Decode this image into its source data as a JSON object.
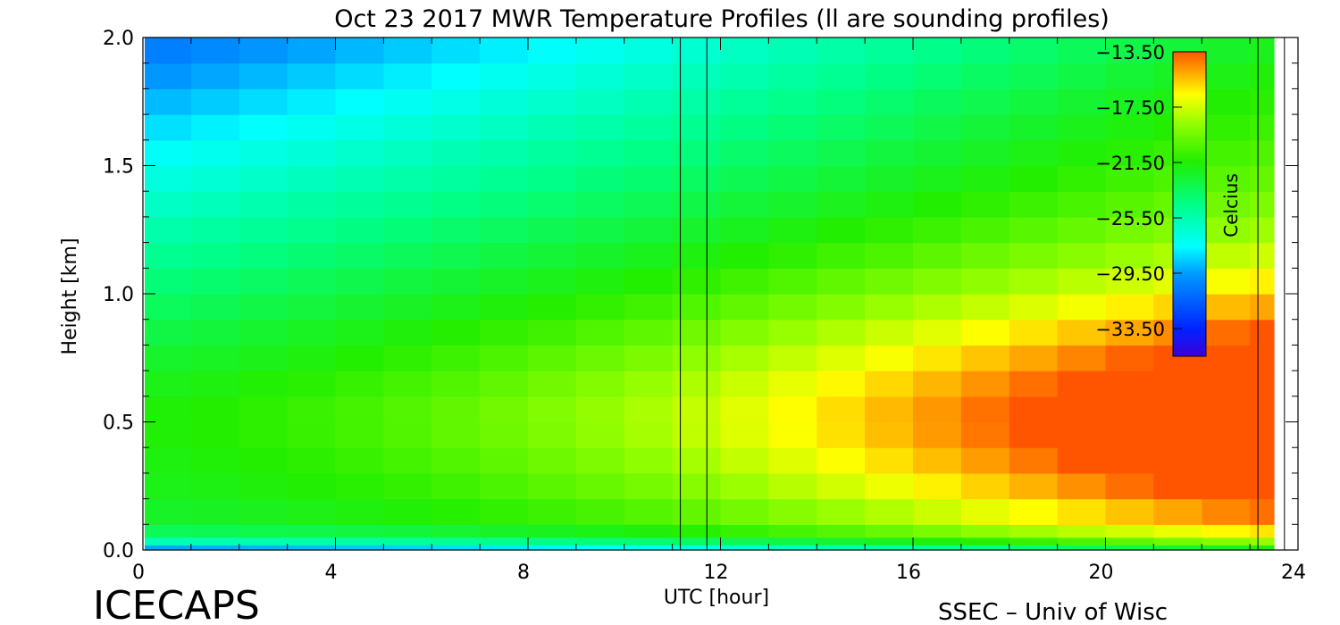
{
  "chart_data": {
    "type": "heatmap",
    "title": "Oct 23 2017 MWR Temperature Profiles (ll are sounding profiles)",
    "xlabel": "UTC [hour]",
    "ylabel": "Height [km]",
    "xlim": [
      0,
      24
    ],
    "ylim": [
      0,
      2.0
    ],
    "x_ticks": [
      "0",
      "4",
      "8",
      "12",
      "16",
      "20",
      "24"
    ],
    "y_ticks": [
      "0.0",
      "0.5",
      "1.0",
      "1.5",
      "2.0"
    ],
    "colorbar": {
      "label": "Celcius",
      "range": [
        -35.5,
        -13.5
      ],
      "ticks": [
        "-13.50",
        "-17.50",
        "-21.50",
        "-25.50",
        "-29.50",
        "-33.50"
      ]
    },
    "heights_km": [
      0.0,
      0.02,
      0.05,
      0.1,
      0.2,
      0.3,
      0.4,
      0.5,
      0.6,
      0.7,
      0.8,
      0.9,
      1.0,
      1.1,
      1.2,
      1.3,
      1.4,
      1.5,
      1.6,
      1.7,
      1.8,
      1.9,
      2.0
    ],
    "hours": [
      0,
      1,
      2,
      3,
      4,
      5,
      6,
      7,
      8,
      9,
      10,
      11,
      12,
      13,
      14,
      15,
      16,
      17,
      18,
      19,
      20,
      21,
      22,
      23
    ],
    "soundings_utc": [
      11.0,
      23.0
    ],
    "legend_note": "ll are sounding profiles"
  },
  "footer": {
    "left": "ICECAPS",
    "right": "SSEC – Univ of Wisc"
  }
}
